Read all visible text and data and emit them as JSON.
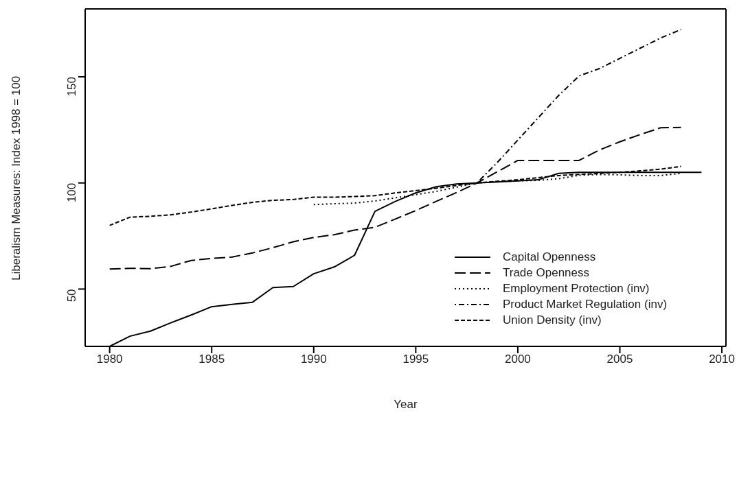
{
  "chart_data": {
    "type": "line",
    "xlabel": "Year",
    "ylabel": "Liberalism Measures: Index 1998 = 100",
    "x": [
      1980,
      1981,
      1982,
      1983,
      1984,
      1985,
      1986,
      1987,
      1988,
      1989,
      1990,
      1991,
      1992,
      1993,
      1994,
      1995,
      1996,
      1997,
      1998,
      1999,
      2000,
      2001,
      2002,
      2003,
      2004,
      2005,
      2006,
      2007,
      2008,
      2009
    ],
    "series": [
      {
        "name": "Capital Openness",
        "color": "#000000",
        "line_style": "solid",
        "values": [
          23,
          27.8,
          30.2,
          34.1,
          37.8,
          41.7,
          42.8,
          43.8,
          50.7,
          51.2,
          57.2,
          60.4,
          65.9,
          86.6,
          91.3,
          95.3,
          98.2,
          99.5,
          100,
          100.5,
          101,
          101.5,
          104.5,
          105,
          105,
          105,
          105,
          105,
          105,
          105
        ]
      },
      {
        "name": "Trade Openness",
        "color": "#000000",
        "line_style": "longdash",
        "values": [
          59.4,
          59.8,
          59.6,
          60.7,
          63.5,
          64.4,
          65.1,
          67,
          69.5,
          72.3,
          74.3,
          75.6,
          77.8,
          79.1,
          83,
          87,
          91.3,
          95.5,
          100,
          105.3,
          110.6,
          110.6,
          110.6,
          110.6,
          115.5,
          119.4,
          122.8,
          126,
          126.2,
          null
        ]
      },
      {
        "name": "Employment Protection (inv)",
        "color": "#000000",
        "line_style": "dotted",
        "values": [
          null,
          null,
          null,
          null,
          null,
          null,
          null,
          null,
          null,
          null,
          89.8,
          90.2,
          90.5,
          91.5,
          93,
          94.5,
          96,
          98,
          100,
          100.5,
          101,
          101.2,
          102,
          103.6,
          104,
          103.8,
          103.5,
          103.5,
          104.5,
          null
        ]
      },
      {
        "name": "Product Market Regulation (inv)",
        "color": "#000000",
        "line_style": "dashdot",
        "values": [
          null,
          null,
          null,
          null,
          null,
          null,
          null,
          null,
          null,
          null,
          null,
          null,
          null,
          null,
          null,
          null,
          null,
          null,
          100,
          109.7,
          120.2,
          130.7,
          141.2,
          150.4,
          153.9,
          158.7,
          163.5,
          168.3,
          172.3,
          null
        ]
      },
      {
        "name": "Union Density (inv)",
        "color": "#000000",
        "line_style": "dashed",
        "values": [
          80,
          83.9,
          84.3,
          85,
          86.3,
          87.8,
          89.4,
          90.9,
          91.8,
          92.2,
          93.3,
          93.3,
          93.6,
          94,
          95.3,
          96.4,
          97.5,
          98.8,
          100,
          100.8,
          101.5,
          102.5,
          103.5,
          104,
          104.5,
          105,
          105.7,
          106.5,
          107.8,
          null
        ]
      }
    ],
    "xlim": [
      1978.8,
      2010.2
    ],
    "xticks": [
      1980,
      1985,
      1990,
      1995,
      2000,
      2005,
      2010
    ],
    "ylim": [
      23,
      182
    ],
    "yticks": [
      50,
      100,
      150
    ],
    "legend": "right",
    "marker": "none"
  }
}
